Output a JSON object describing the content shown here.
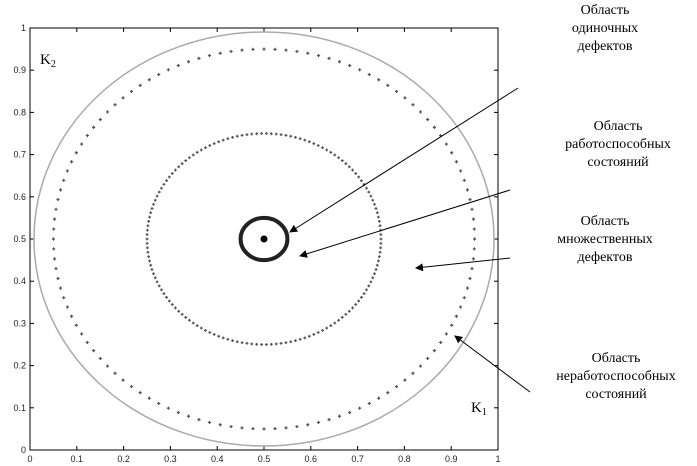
{
  "axes": {
    "y_ticks": [
      "0",
      "0.1",
      "0.2",
      "0.3",
      "0.4",
      "0.5",
      "0.6",
      "0.7",
      "0.8",
      "0.9",
      "1"
    ],
    "x_ticks": [
      "0",
      "0.1",
      "0.2",
      "0.3",
      "0.4",
      "0.5",
      "0.6",
      "0.7",
      "0.8",
      "0.9",
      "1"
    ],
    "x_var": {
      "base": "K",
      "sub": "1"
    },
    "y_var": {
      "base": "K",
      "sub": "2"
    },
    "xlim": [
      0,
      1
    ],
    "ylim": [
      0,
      1
    ]
  },
  "regions": {
    "center": [
      0.5,
      0.5
    ],
    "single_defects_radius": 0.05,
    "operable_radius": 0.25,
    "multiple_defects_radius": 0.45,
    "boundary_radius": 0.5
  },
  "annotations": [
    {
      "lines": [
        "Область",
        "одиночных",
        "дефектов"
      ]
    },
    {
      "lines": [
        "Область",
        "работоспособных",
        "состояний"
      ]
    },
    {
      "lines": [
        "Область",
        "множественных",
        "дефектов"
      ]
    },
    {
      "lines": [
        "Область",
        "неработоспособных",
        "состояний"
      ]
    }
  ],
  "colors": {
    "markers": "#555555",
    "boundary": "#aaaaaa",
    "arrows": "#000000"
  }
}
